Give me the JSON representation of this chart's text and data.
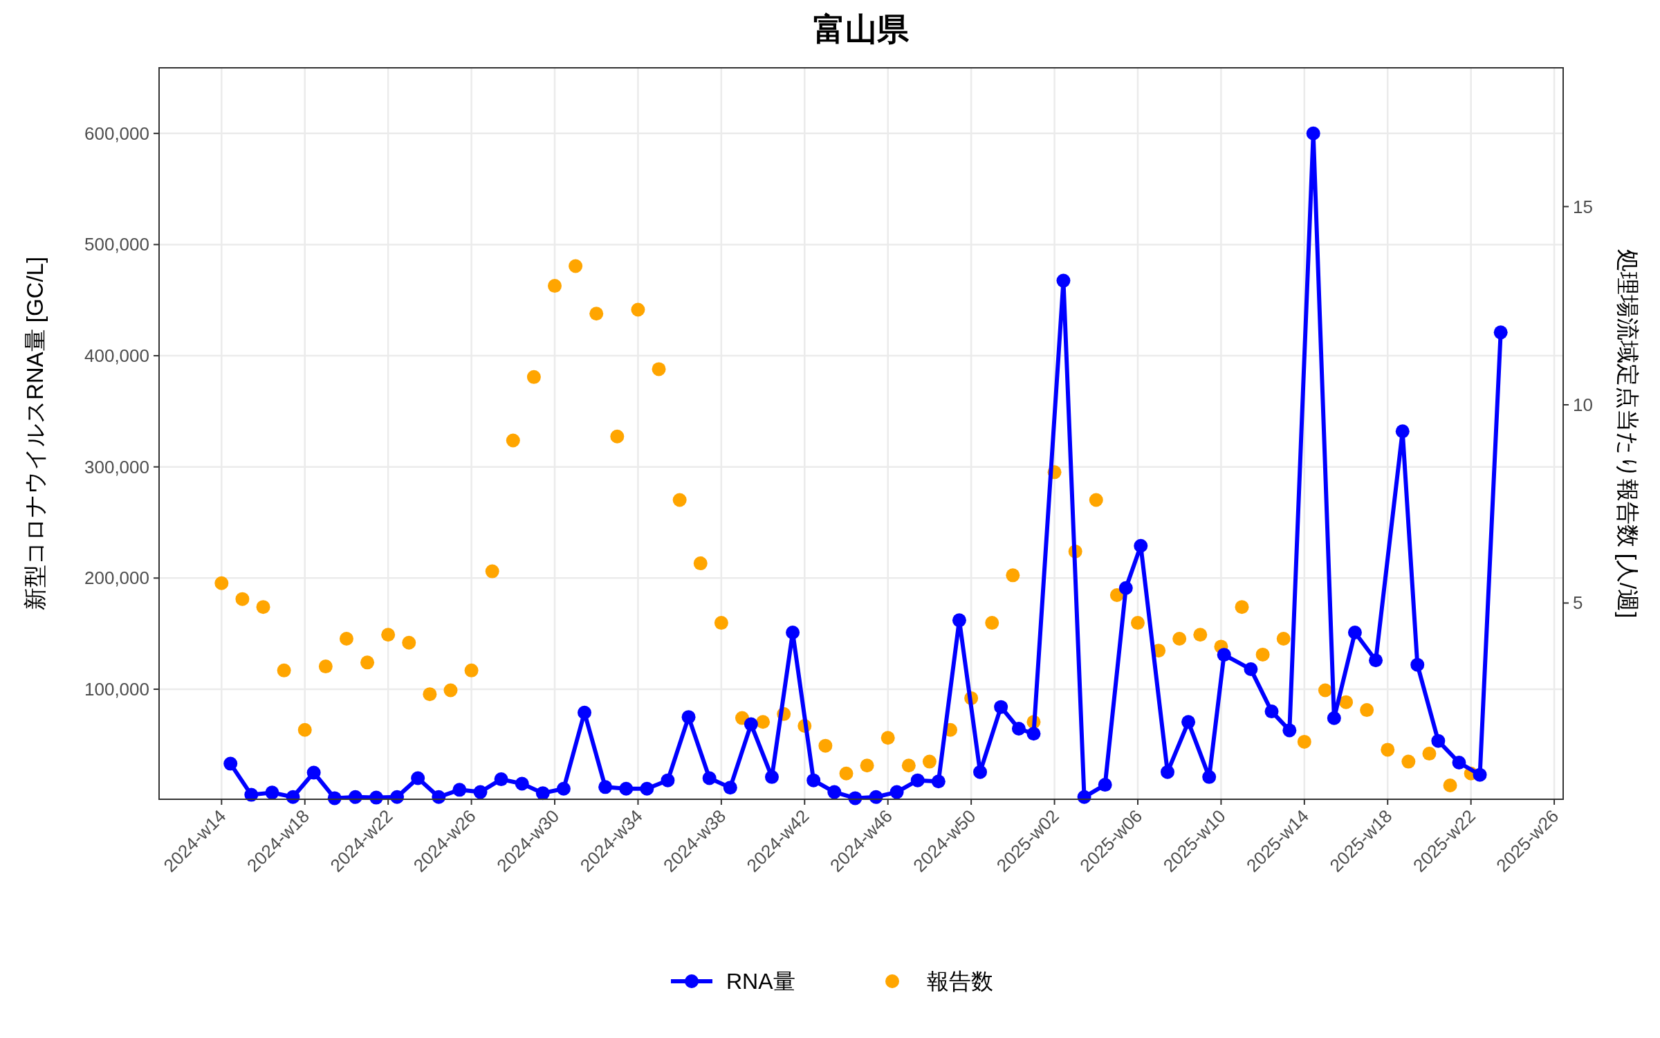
{
  "chart_data": {
    "type": "line",
    "title": "富山県",
    "ylabel": "新型コロナウイルスRNA量 [GC/L]",
    "y2label": "処理場流域定点当たり報告数 [人/週]",
    "xlim": [
      "2024-03-11",
      "2025-06-26"
    ],
    "xticks": [
      {
        "value": "2024-04-01",
        "label": "2024-w14"
      },
      {
        "value": "2024-04-29",
        "label": "2024-w18"
      },
      {
        "value": "2024-05-27",
        "label": "2024-w22"
      },
      {
        "value": "2024-06-24",
        "label": "2024-w26"
      },
      {
        "value": "2024-07-22",
        "label": "2024-w30"
      },
      {
        "value": "2024-08-19",
        "label": "2024-w34"
      },
      {
        "value": "2024-09-16",
        "label": "2024-w38"
      },
      {
        "value": "2024-10-14",
        "label": "2024-w42"
      },
      {
        "value": "2024-11-11",
        "label": "2024-w46"
      },
      {
        "value": "2024-12-09",
        "label": "2024-w50"
      },
      {
        "value": "2025-01-06",
        "label": "2025-w02"
      },
      {
        "value": "2025-02-03",
        "label": "2025-w06"
      },
      {
        "value": "2025-03-03",
        "label": "2025-w10"
      },
      {
        "value": "2025-03-31",
        "label": "2025-w14"
      },
      {
        "value": "2025-04-28",
        "label": "2025-w18"
      },
      {
        "value": "2025-05-26",
        "label": "2025-w22"
      },
      {
        "value": "2025-06-23",
        "label": "2025-w26"
      }
    ],
    "ylim": [
      1000,
      659000
    ],
    "yticks": [
      {
        "value": 100000,
        "label": "100,000"
      },
      {
        "value": 200000,
        "label": "200,000"
      },
      {
        "value": 300000,
        "label": "300,000"
      },
      {
        "value": 400000,
        "label": "400,000"
      },
      {
        "value": 500000,
        "label": "500,000"
      },
      {
        "value": 600000,
        "label": "600,000"
      }
    ],
    "y2lim": [
      0.05,
      18.5
    ],
    "y2ticks": [
      5,
      10,
      15
    ],
    "grid": true,
    "legend": "bottom",
    "marker": "circle",
    "line_style": "solid",
    "series": [
      {
        "name": "RNA量",
        "color": "#0000ff",
        "x": [
          "2024-04-04",
          "2024-04-11",
          "2024-04-18",
          "2024-04-25",
          "2024-05-02",
          "2024-05-09",
          "2024-05-16",
          "2024-05-23",
          "2024-05-30",
          "2024-06-06",
          "2024-06-13",
          "2024-06-20",
          "2024-06-27",
          "2024-07-04",
          "2024-07-11",
          "2024-07-18",
          "2024-07-25",
          "2024-08-01",
          "2024-08-08",
          "2024-08-15",
          "2024-08-22",
          "2024-08-29",
          "2024-09-05",
          "2024-09-12",
          "2024-09-19",
          "2024-09-26",
          "2024-10-03",
          "2024-10-10",
          "2024-10-17",
          "2024-10-24",
          "2024-10-31",
          "2024-11-07",
          "2024-11-14",
          "2024-11-21",
          "2024-11-28",
          "2024-12-05",
          "2024-12-12",
          "2024-12-19",
          "2024-12-25",
          "2024-12-30",
          "2025-01-09",
          "2025-01-16",
          "2025-01-23",
          "2025-01-30",
          "2025-02-04",
          "2025-02-13",
          "2025-02-20",
          "2025-02-27",
          "2025-03-04",
          "2025-03-13",
          "2025-03-20",
          "2025-03-26",
          "2025-04-03",
          "2025-04-10",
          "2025-04-17",
          "2025-04-24",
          "2025-05-03",
          "2025-05-08",
          "2025-05-15",
          "2025-05-22",
          "2025-05-29",
          "2025-06-05"
        ],
        "values": [
          33000,
          5000,
          7000,
          3000,
          25000,
          2000,
          3000,
          2500,
          3000,
          20000,
          3000,
          9500,
          7500,
          19000,
          15000,
          6500,
          10500,
          79000,
          12000,
          10500,
          10500,
          18000,
          75000,
          20000,
          11500,
          68500,
          21000,
          151000,
          18000,
          7500,
          2000,
          3000,
          7500,
          18000,
          17000,
          162000,
          25500,
          84000,
          64500,
          60000,
          467500,
          3000,
          14000,
          191000,
          229000,
          25500,
          70500,
          21000,
          131000,
          118000,
          80000,
          63000,
          600000,
          74000,
          151000,
          126000,
          332000,
          122000,
          53500,
          34000,
          23000,
          421000
        ]
      },
      {
        "name": "報告数",
        "type": "scatter",
        "axis": "y2",
        "color": "#ffa500",
        "x": [
          "2024-04-01",
          "2024-04-08",
          "2024-04-15",
          "2024-04-22",
          "2024-04-29",
          "2024-05-06",
          "2024-05-13",
          "2024-05-20",
          "2024-05-27",
          "2024-06-03",
          "2024-06-10",
          "2024-06-17",
          "2024-06-24",
          "2024-07-01",
          "2024-07-08",
          "2024-07-15",
          "2024-07-22",
          "2024-07-29",
          "2024-08-05",
          "2024-08-12",
          "2024-08-19",
          "2024-08-26",
          "2024-09-02",
          "2024-09-09",
          "2024-09-16",
          "2024-09-23",
          "2024-09-30",
          "2024-10-07",
          "2024-10-14",
          "2024-10-21",
          "2024-10-28",
          "2024-11-04",
          "2024-11-11",
          "2024-11-18",
          "2024-11-25",
          "2024-12-02",
          "2024-12-09",
          "2024-12-16",
          "2024-12-23",
          "2024-12-30",
          "2025-01-06",
          "2025-01-13",
          "2025-01-20",
          "2025-01-27",
          "2025-02-03",
          "2025-02-10",
          "2025-02-17",
          "2025-02-24",
          "2025-03-03",
          "2025-03-10",
          "2025-03-17",
          "2025-03-24",
          "2025-03-31",
          "2025-04-07",
          "2025-04-14",
          "2025-04-21",
          "2025-04-28",
          "2025-05-05",
          "2025-05-12",
          "2025-05-19",
          "2025-05-26"
        ],
        "values": [
          5.5,
          5.1,
          4.9,
          3.3,
          1.8,
          3.4,
          4.1,
          3.5,
          4.2,
          4.0,
          2.7,
          2.8,
          3.3,
          5.8,
          9.1,
          10.7,
          13.0,
          13.5,
          12.3,
          9.2,
          12.4,
          10.9,
          7.6,
          6.0,
          4.5,
          2.1,
          2.0,
          2.2,
          1.9,
          1.4,
          0.7,
          0.9,
          1.6,
          0.9,
          1.0,
          1.8,
          2.6,
          4.5,
          5.7,
          2.0,
          8.3,
          6.3,
          7.6,
          5.2,
          4.5,
          3.8,
          4.1,
          4.2,
          3.9,
          4.9,
          3.7,
          4.1,
          1.5,
          2.8,
          2.5,
          2.3,
          1.3,
          1.0,
          1.2,
          0.4,
          0.7
        ]
      }
    ]
  }
}
